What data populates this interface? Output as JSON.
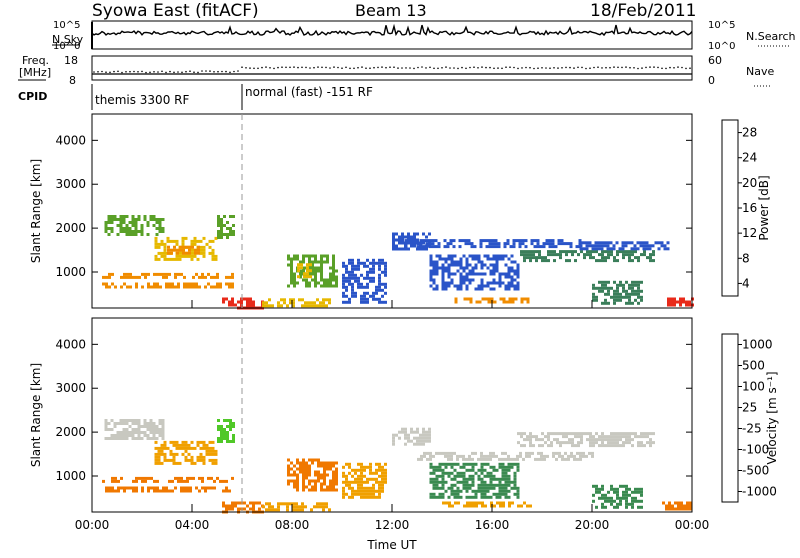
{
  "header": {
    "title": "Syowa East (fitACF)",
    "beam": "Beam 13",
    "date": "18/Feb/2011"
  },
  "status_panels": {
    "nsky_label": "N.Sky",
    "nsearch_label": "N.Search",
    "nsky_ticks": [
      "10^5",
      "10^0"
    ],
    "nsearch_ticks": [
      "10^5",
      "10^0"
    ],
    "freq_label": "Freq.",
    "freq_unit": "[MHz]",
    "freq_ticks": [
      "18",
      "8"
    ],
    "nave_ticks": [
      "60",
      "0"
    ],
    "nave_label": "Nave",
    "cpid_label": "CPID",
    "cpid_modes": [
      {
        "label": "themis 3300 RF",
        "start_hour": 0
      },
      {
        "label": "normal (fast) -151 RF",
        "start_hour": 6
      }
    ]
  },
  "chart_data": [
    {
      "type": "heatmap",
      "name": "power-panel",
      "ylabel": "Slant Range [km]",
      "yticks": [
        1000,
        2000,
        3000,
        4000
      ],
      "ylim": [
        180,
        4600
      ],
      "xticks": [
        "00:00",
        "04:00",
        "08:00",
        "12:00",
        "16:00",
        "20:00",
        "00:00"
      ],
      "xlim_hours": [
        0,
        24
      ],
      "colorbar": {
        "label": "Power [dB]",
        "ticks": [
          "4",
          "8",
          "12",
          "16",
          "20",
          "24",
          "28"
        ],
        "colors": [
          "#1e32ff",
          "#2a54c8",
          "#3a7e5a",
          "#5aa028",
          "#e6b800",
          "#f08c00",
          "#e82a1a"
        ]
      },
      "blocks": [
        {
          "t0": 0.4,
          "t1": 5.6,
          "r0": 650,
          "r1": 760,
          "level": 5
        },
        {
          "t0": 0.4,
          "t1": 5.6,
          "r0": 860,
          "r1": 980,
          "level": 5
        },
        {
          "t0": 0.5,
          "t1": 2.8,
          "r0": 1850,
          "r1": 2300,
          "level": 3
        },
        {
          "t0": 2.5,
          "t1": 5.0,
          "r0": 1300,
          "r1": 1800,
          "level": 4
        },
        {
          "t0": 3.0,
          "t1": 4.3,
          "r0": 1400,
          "r1": 1600,
          "level": 5
        },
        {
          "t0": 5.0,
          "t1": 5.7,
          "r0": 1800,
          "r1": 2300,
          "level": 3
        },
        {
          "t0": 5.2,
          "t1": 6.8,
          "r0": 200,
          "r1": 420,
          "level": 6
        },
        {
          "t0": 6.8,
          "t1": 9.5,
          "r0": 250,
          "r1": 400,
          "level": 4
        },
        {
          "t0": 7.8,
          "t1": 9.8,
          "r0": 700,
          "r1": 1400,
          "level": 3
        },
        {
          "t0": 8.2,
          "t1": 8.8,
          "r0": 900,
          "r1": 1200,
          "level": 4
        },
        {
          "t0": 10.0,
          "t1": 11.8,
          "r0": 300,
          "r1": 1300,
          "level": 1
        },
        {
          "t0": 12.0,
          "t1": 13.5,
          "r0": 1500,
          "r1": 1900,
          "level": 1
        },
        {
          "t0": 12.5,
          "t1": 19.5,
          "r0": 1550,
          "r1": 1750,
          "level": 1
        },
        {
          "t0": 14.5,
          "t1": 17.5,
          "r0": 300,
          "r1": 420,
          "level": 5
        },
        {
          "t0": 13.5,
          "t1": 17.0,
          "r0": 600,
          "r1": 1400,
          "level": 1
        },
        {
          "t0": 17.0,
          "t1": 22.5,
          "r0": 1250,
          "r1": 1500,
          "level": 2
        },
        {
          "t0": 19.5,
          "t1": 23.0,
          "r0": 1500,
          "r1": 1700,
          "level": 1
        },
        {
          "t0": 20.0,
          "t1": 22.0,
          "r0": 300,
          "r1": 800,
          "level": 2
        },
        {
          "t0": 23.0,
          "t1": 24.0,
          "r0": 250,
          "r1": 420,
          "level": 6
        }
      ]
    },
    {
      "type": "heatmap",
      "name": "velocity-panel",
      "ylabel": "Slant Range [km]",
      "yticks": [
        1000,
        2000,
        3000,
        4000
      ],
      "ylim": [
        180,
        4600
      ],
      "xticks": [
        "00:00",
        "04:00",
        "08:00",
        "12:00",
        "16:00",
        "20:00",
        "00:00"
      ],
      "xlim_hours": [
        0,
        24
      ],
      "xlabel": "Time UT",
      "colorbar": {
        "label": "Velocity [m s⁻¹]",
        "ticks": [
          "1000",
          "500",
          "100",
          "25",
          "-25",
          "-100",
          "-500",
          "-1000"
        ],
        "colors": [
          "#1e32ff",
          "#2e5aa0",
          "#3a8a50",
          "#50c828",
          "#c8c8c0",
          "#f0a000",
          "#f07800",
          "#e82a1a"
        ]
      },
      "blocks": [
        {
          "t0": 0.4,
          "t1": 5.6,
          "r0": 650,
          "r1": 760,
          "level": 6
        },
        {
          "t0": 0.4,
          "t1": 5.6,
          "r0": 860,
          "r1": 980,
          "level": 6
        },
        {
          "t0": 0.5,
          "t1": 2.8,
          "r0": 1850,
          "r1": 2300,
          "level": 4
        },
        {
          "t0": 2.5,
          "t1": 5.0,
          "r0": 1300,
          "r1": 1800,
          "level": 5
        },
        {
          "t0": 5.0,
          "t1": 5.7,
          "r0": 1800,
          "r1": 2300,
          "level": 3
        },
        {
          "t0": 5.2,
          "t1": 6.8,
          "r0": 200,
          "r1": 420,
          "level": 6
        },
        {
          "t0": 6.8,
          "t1": 9.5,
          "r0": 250,
          "r1": 400,
          "level": 5
        },
        {
          "t0": 7.8,
          "t1": 9.8,
          "r0": 700,
          "r1": 1400,
          "level": 6
        },
        {
          "t0": 10.0,
          "t1": 11.8,
          "r0": 500,
          "r1": 1300,
          "level": 5
        },
        {
          "t0": 12.0,
          "t1": 13.5,
          "r0": 1700,
          "r1": 2100,
          "level": 4
        },
        {
          "t0": 13.0,
          "t1": 20.0,
          "r0": 1350,
          "r1": 1550,
          "level": 4
        },
        {
          "t0": 14.0,
          "t1": 17.5,
          "r0": 300,
          "r1": 420,
          "level": 5
        },
        {
          "t0": 13.5,
          "t1": 17.0,
          "r0": 500,
          "r1": 1300,
          "level": 2
        },
        {
          "t0": 17.0,
          "t1": 22.5,
          "r0": 1700,
          "r1": 2000,
          "level": 4
        },
        {
          "t0": 20.0,
          "t1": 22.0,
          "r0": 300,
          "r1": 800,
          "level": 2
        },
        {
          "t0": 22.8,
          "t1": 24.0,
          "r0": 250,
          "r1": 420,
          "level": 6
        }
      ]
    }
  ]
}
